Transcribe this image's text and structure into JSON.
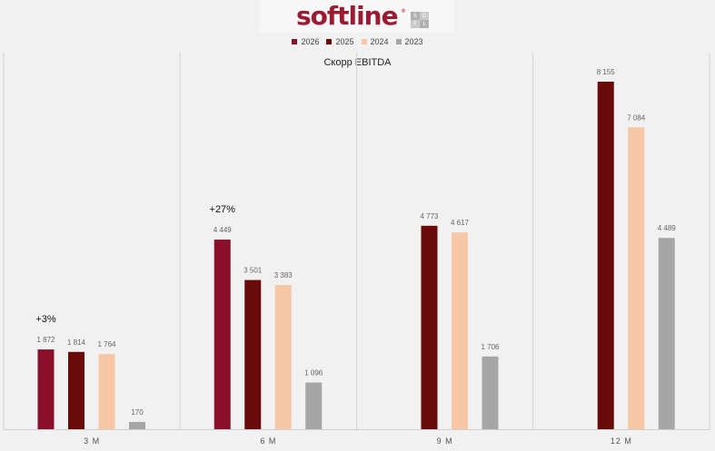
{
  "brand": {
    "logo_text": "softline",
    "logo_mark": "®",
    "logo_grid": [
      "S",
      "O",
      "F",
      "L"
    ]
  },
  "chart_data": {
    "type": "bar",
    "title": "Скорр EBITDA",
    "categories": [
      "3 M",
      "6 M",
      "9 M",
      "12 M"
    ],
    "series": [
      {
        "name": "2026",
        "color": "#8a0f2a",
        "values": [
          1872,
          4449,
          null,
          null
        ],
        "labels": [
          "1 872",
          "4 449",
          "",
          ""
        ]
      },
      {
        "name": "2025",
        "color": "#6b0a0a",
        "values": [
          1814,
          3501,
          4773,
          8155
        ],
        "labels": [
          "1 814",
          "3 501",
          "4 773",
          "8 155"
        ]
      },
      {
        "name": "2024",
        "color": "#f8c8a6",
        "values": [
          1764,
          3383,
          4617,
          7084
        ],
        "labels": [
          "1 764",
          "3 383",
          "4 617",
          "7 084"
        ]
      },
      {
        "name": "2023",
        "color": "#a6a6a6",
        "values": [
          170,
          1096,
          1706,
          4489
        ],
        "labels": [
          "170",
          "1 096",
          "1 706",
          "4 489"
        ]
      }
    ],
    "annotations": [
      {
        "category": "3 M",
        "text": "+3%"
      },
      {
        "category": "6 M",
        "text": "+27%"
      }
    ],
    "ylim": [
      0,
      8800
    ],
    "grid": false,
    "legend_position": "top-center"
  }
}
